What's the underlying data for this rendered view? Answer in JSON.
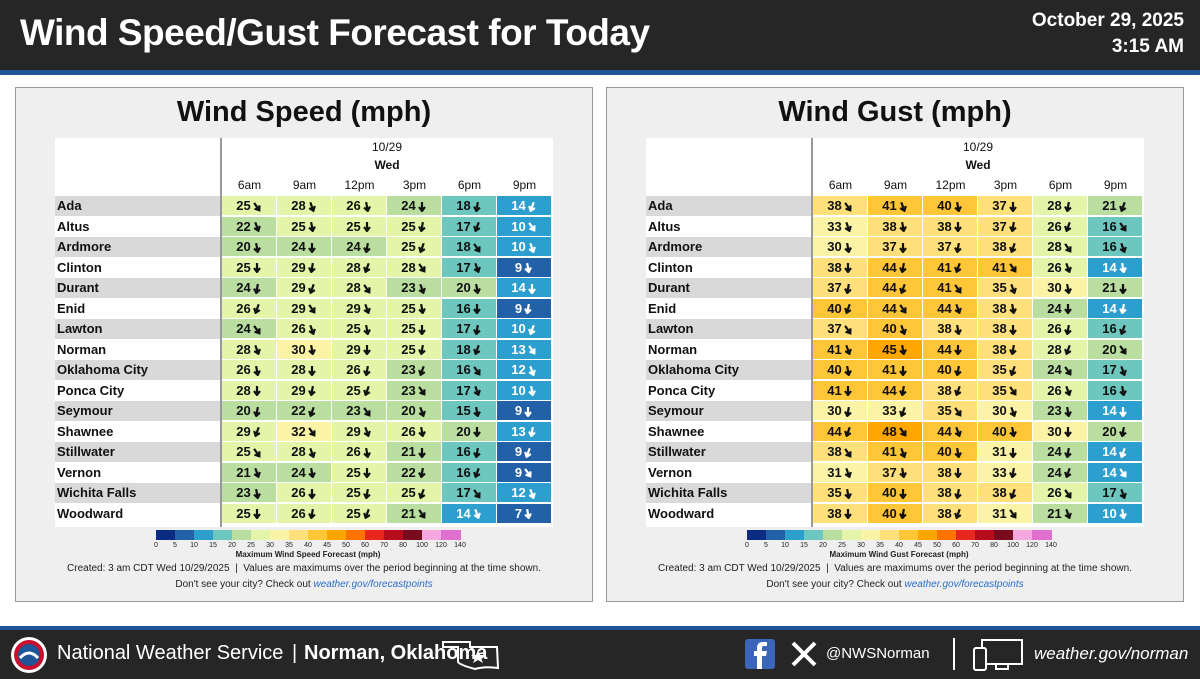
{
  "header": {
    "title": "Wind Speed/Gust Forecast for Today",
    "date": "October 29, 2025",
    "time": "3:15 AM"
  },
  "panels": [
    {
      "title": "Wind Speed (mph)",
      "date": "10/29",
      "day": "Wed",
      "times": [
        "6am",
        "9am",
        "12pm",
        "3pm",
        "6pm",
        "9pm"
      ],
      "rows": [
        {
          "city": "Ada",
          "values": [
            25,
            28,
            26,
            24,
            18,
            14
          ]
        },
        {
          "city": "Altus",
          "values": [
            22,
            25,
            25,
            25,
            17,
            10
          ]
        },
        {
          "city": "Ardmore",
          "values": [
            20,
            24,
            24,
            25,
            18,
            10
          ]
        },
        {
          "city": "Clinton",
          "values": [
            25,
            29,
            28,
            28,
            17,
            9
          ]
        },
        {
          "city": "Durant",
          "values": [
            24,
            29,
            28,
            23,
            20,
            14
          ]
        },
        {
          "city": "Enid",
          "values": [
            26,
            29,
            29,
            25,
            16,
            9
          ]
        },
        {
          "city": "Lawton",
          "values": [
            24,
            26,
            25,
            25,
            17,
            10
          ]
        },
        {
          "city": "Norman",
          "values": [
            28,
            30,
            29,
            25,
            18,
            13
          ]
        },
        {
          "city": "Oklahoma City",
          "values": [
            26,
            28,
            26,
            23,
            16,
            12
          ]
        },
        {
          "city": "Ponca City",
          "values": [
            28,
            29,
            25,
            23,
            17,
            10
          ]
        },
        {
          "city": "Seymour",
          "values": [
            20,
            22,
            23,
            20,
            15,
            9
          ]
        },
        {
          "city": "Shawnee",
          "values": [
            29,
            32,
            29,
            26,
            20,
            13
          ]
        },
        {
          "city": "Stillwater",
          "values": [
            25,
            28,
            26,
            21,
            16,
            9
          ]
        },
        {
          "city": "Vernon",
          "values": [
            21,
            24,
            25,
            22,
            16,
            9
          ]
        },
        {
          "city": "Wichita Falls",
          "values": [
            23,
            26,
            25,
            25,
            17,
            12
          ]
        },
        {
          "city": "Woodward",
          "values": [
            25,
            26,
            25,
            21,
            14,
            7
          ]
        }
      ],
      "legend": {
        "ticks": [
          0,
          5,
          10,
          15,
          20,
          25,
          30,
          35,
          40,
          45,
          50,
          60,
          70,
          80,
          100,
          120,
          140
        ],
        "colors": [
          "#0c2c84",
          "#2260a8",
          "#2c9fcf",
          "#6dc7bf",
          "#b9dea0",
          "#e4f4a8",
          "#fbf3a6",
          "#ffe07a",
          "#ffc637",
          "#ffa600",
          "#ff7400",
          "#e8281e",
          "#b50d1c",
          "#7a0b1f",
          "#f7a8e0",
          "#e070d0"
        ],
        "label": "Maximum Wind Speed Forecast (mph)"
      },
      "notes": {
        "created": "Created: 3 am CDT Wed 10/29/2025  |  Values are maximums over the period beginning at the time shown.",
        "prompt": "Don't see your city? Check out",
        "link": "weather.gov/forecastpoints"
      }
    },
    {
      "title": "Wind Gust (mph)",
      "date": "10/29",
      "day": "Wed",
      "times": [
        "6am",
        "9am",
        "12pm",
        "3pm",
        "6pm",
        "9pm"
      ],
      "rows": [
        {
          "city": "Ada",
          "values": [
            38,
            41,
            40,
            37,
            28,
            21
          ]
        },
        {
          "city": "Altus",
          "values": [
            33,
            38,
            38,
            37,
            26,
            16
          ]
        },
        {
          "city": "Ardmore",
          "values": [
            30,
            37,
            37,
            38,
            28,
            16
          ]
        },
        {
          "city": "Clinton",
          "values": [
            38,
            44,
            41,
            41,
            26,
            14
          ]
        },
        {
          "city": "Durant",
          "values": [
            37,
            44,
            41,
            35,
            30,
            21
          ]
        },
        {
          "city": "Enid",
          "values": [
            40,
            44,
            44,
            38,
            24,
            14
          ]
        },
        {
          "city": "Lawton",
          "values": [
            37,
            40,
            38,
            38,
            26,
            16
          ]
        },
        {
          "city": "Norman",
          "values": [
            41,
            45,
            44,
            38,
            28,
            20
          ]
        },
        {
          "city": "Oklahoma City",
          "values": [
            40,
            41,
            40,
            35,
            24,
            17
          ]
        },
        {
          "city": "Ponca City",
          "values": [
            41,
            44,
            38,
            35,
            26,
            16
          ]
        },
        {
          "city": "Seymour",
          "values": [
            30,
            33,
            35,
            30,
            23,
            14
          ]
        },
        {
          "city": "Shawnee",
          "values": [
            44,
            48,
            44,
            40,
            30,
            20
          ]
        },
        {
          "city": "Stillwater",
          "values": [
            38,
            41,
            40,
            31,
            24,
            14
          ]
        },
        {
          "city": "Vernon",
          "values": [
            31,
            37,
            38,
            33,
            24,
            14
          ]
        },
        {
          "city": "Wichita Falls",
          "values": [
            35,
            40,
            38,
            38,
            26,
            17
          ]
        },
        {
          "city": "Woodward",
          "values": [
            38,
            40,
            38,
            31,
            21,
            10
          ]
        }
      ],
      "legend": {
        "ticks": [
          0,
          5,
          10,
          15,
          20,
          25,
          30,
          35,
          40,
          45,
          50,
          60,
          70,
          80,
          100,
          120,
          140
        ],
        "colors": [
          "#0c2c84",
          "#2260a8",
          "#2c9fcf",
          "#6dc7bf",
          "#b9dea0",
          "#e4f4a8",
          "#fbf3a6",
          "#ffe07a",
          "#ffc637",
          "#ffa600",
          "#ff7400",
          "#e8281e",
          "#b50d1c",
          "#7a0b1f",
          "#f7a8e0",
          "#e070d0"
        ],
        "label": "Maximum Wind Gust Forecast (mph)"
      },
      "notes": {
        "created": "Created: 3 am CDT Wed 10/29/2025  |  Values are maximums over the period beginning at the time shown.",
        "prompt": "Don't see your city? Check out",
        "link": "weather.gov/forecastpoints"
      }
    }
  ],
  "footer": {
    "agency": "National Weather Service",
    "separator": "|",
    "office": "Norman, Oklahoma",
    "handle": "@NWSNorman",
    "website": "weather.gov/norman"
  }
}
